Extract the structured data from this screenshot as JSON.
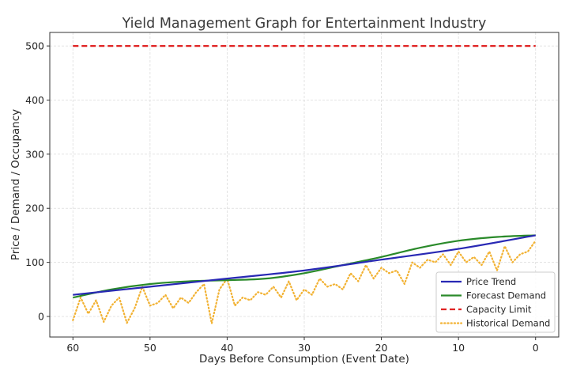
{
  "chart_data": {
    "type": "line",
    "title": "Yield Management Graph for Entertainment Industry",
    "xlabel": "Days Before Consumption (Event Date)",
    "ylabel": "Price / Demand / Occupancy",
    "xlim": [
      63,
      -3
    ],
    "ylim": [
      -38,
      525
    ],
    "x_reversed": true,
    "grid": true,
    "legend_position": "bottom-right",
    "x_ticks": [
      60,
      50,
      40,
      30,
      20,
      10,
      0
    ],
    "y_ticks": [
      0,
      100,
      200,
      300,
      400,
      500
    ],
    "series": [
      {
        "name": "Price Trend",
        "color": "#2828b4",
        "style": "solid",
        "x": [
          60,
          50,
          40,
          30,
          20,
          10,
          0
        ],
        "y": [
          40,
          55,
          70,
          85,
          105,
          125,
          150
        ]
      },
      {
        "name": "Forecast Demand",
        "color": "#2a8a2a",
        "style": "solid",
        "x": [
          60,
          55,
          50,
          45,
          40,
          35,
          30,
          25,
          20,
          15,
          10,
          5,
          0
        ],
        "y": [
          35,
          50,
          60,
          65,
          67,
          70,
          80,
          95,
          110,
          127,
          140,
          147,
          150
        ]
      },
      {
        "name": "Capacity Limit",
        "color": "#e02424",
        "style": "dashed",
        "x": [
          60,
          0
        ],
        "y": [
          500,
          500
        ]
      },
      {
        "name": "Historical Demand",
        "color": "#f2b233",
        "style": "dotted",
        "x": [
          60,
          59,
          58,
          57,
          56,
          55,
          54,
          53,
          52,
          51,
          50,
          49,
          48,
          47,
          46,
          45,
          44,
          43,
          42,
          41,
          40,
          39,
          38,
          37,
          36,
          35,
          34,
          33,
          32,
          31,
          30,
          29,
          28,
          27,
          26,
          25,
          24,
          23,
          22,
          21,
          20,
          19,
          18,
          17,
          16,
          15,
          14,
          13,
          12,
          11,
          10,
          9,
          8,
          7,
          6,
          5,
          4,
          3,
          2,
          1,
          0
        ],
        "y": [
          -7,
          35,
          5,
          30,
          -10,
          20,
          35,
          -12,
          15,
          55,
          20,
          25,
          40,
          15,
          35,
          25,
          45,
          60,
          -13,
          50,
          70,
          20,
          35,
          30,
          45,
          40,
          55,
          35,
          65,
          30,
          50,
          40,
          70,
          55,
          60,
          50,
          80,
          65,
          95,
          70,
          90,
          80,
          85,
          60,
          100,
          90,
          105,
          100,
          115,
          95,
          120,
          100,
          110,
          95,
          120,
          85,
          130,
          100,
          115,
          120,
          140
        ]
      }
    ]
  }
}
